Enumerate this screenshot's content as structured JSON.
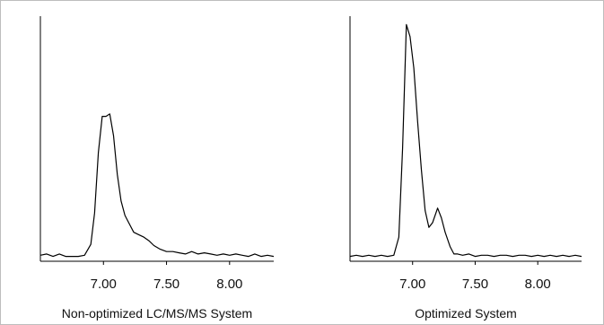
{
  "chart_data": [
    {
      "type": "line",
      "caption": "Non-optimized LC/MS/MS System",
      "xlim": [
        6.5,
        8.35
      ],
      "ylim": [
        0,
        1.0
      ],
      "xticks": [
        7.0,
        7.5,
        8.0
      ],
      "xtick_labels": [
        "7.00",
        "7.50",
        "8.00"
      ],
      "grid": false,
      "series": [
        {
          "x": [
            6.5,
            6.55,
            6.6,
            6.65,
            6.7,
            6.75,
            6.8,
            6.85,
            6.9,
            6.93,
            6.96,
            6.99,
            7.02,
            7.05,
            7.08,
            7.11,
            7.14,
            7.17,
            7.2,
            7.24,
            7.28,
            7.32,
            7.36,
            7.4,
            7.45,
            7.5,
            7.55,
            7.6,
            7.65,
            7.7,
            7.75,
            7.8,
            7.85,
            7.9,
            7.95,
            8.0,
            8.05,
            8.1,
            8.15,
            8.2,
            8.25,
            8.3,
            8.35
          ],
          "y": [
            0.025,
            0.03,
            0.02,
            0.03,
            0.02,
            0.02,
            0.02,
            0.025,
            0.07,
            0.2,
            0.45,
            0.6,
            0.6,
            0.61,
            0.52,
            0.36,
            0.25,
            0.19,
            0.16,
            0.12,
            0.11,
            0.1,
            0.085,
            0.065,
            0.05,
            0.04,
            0.04,
            0.035,
            0.03,
            0.04,
            0.03,
            0.035,
            0.03,
            0.025,
            0.03,
            0.025,
            0.03,
            0.025,
            0.02,
            0.03,
            0.02,
            0.025,
            0.02
          ]
        }
      ]
    },
    {
      "type": "line",
      "caption": "Optimized System",
      "xlim": [
        6.5,
        8.35
      ],
      "ylim": [
        0,
        1.0
      ],
      "xticks": [
        7.0,
        7.5,
        8.0
      ],
      "xtick_labels": [
        "7.00",
        "7.50",
        "8.00"
      ],
      "grid": false,
      "series": [
        {
          "x": [
            6.5,
            6.55,
            6.6,
            6.65,
            6.7,
            6.75,
            6.8,
            6.85,
            6.89,
            6.92,
            6.95,
            6.98,
            7.01,
            7.04,
            7.07,
            7.1,
            7.13,
            7.16,
            7.2,
            7.23,
            7.26,
            7.3,
            7.33,
            7.36,
            7.4,
            7.45,
            7.5,
            7.55,
            7.6,
            7.65,
            7.7,
            7.75,
            7.8,
            7.85,
            7.9,
            7.95,
            8.0,
            8.05,
            8.1,
            8.15,
            8.2,
            8.25,
            8.3,
            8.35
          ],
          "y": [
            0.02,
            0.025,
            0.02,
            0.025,
            0.02,
            0.025,
            0.02,
            0.025,
            0.1,
            0.47,
            0.98,
            0.93,
            0.8,
            0.58,
            0.38,
            0.21,
            0.14,
            0.16,
            0.22,
            0.18,
            0.12,
            0.06,
            0.03,
            0.03,
            0.025,
            0.03,
            0.02,
            0.025,
            0.025,
            0.02,
            0.025,
            0.025,
            0.02,
            0.025,
            0.025,
            0.02,
            0.025,
            0.02,
            0.025,
            0.02,
            0.025,
            0.02,
            0.025,
            0.02
          ]
        }
      ]
    }
  ]
}
